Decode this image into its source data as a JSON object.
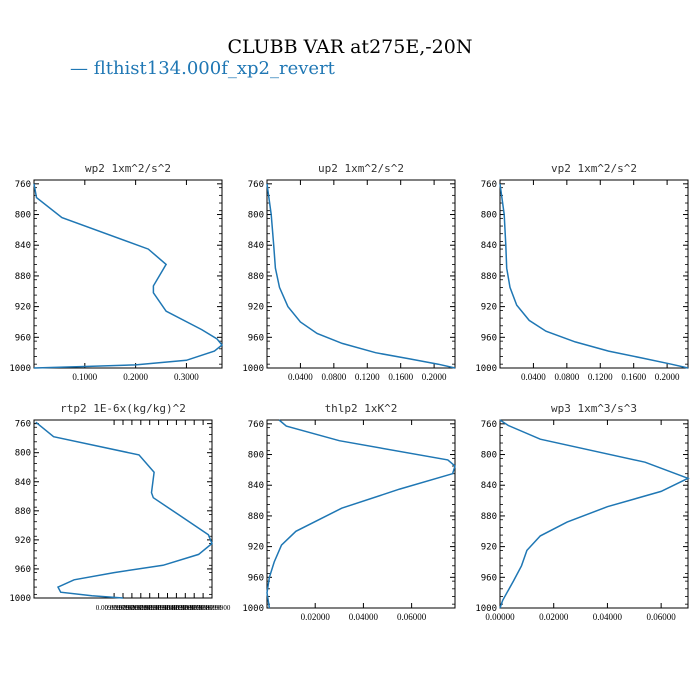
{
  "title": "CLUBB VAR at275E,-20N",
  "legend": [
    {
      "label": "— flthist134.000f_xp2_revert",
      "color": "#1f77b4"
    }
  ],
  "colors": {
    "line": "#1f77b4",
    "axis": "#000000"
  },
  "chart_data": [
    {
      "type": "line",
      "title": "wp2  1xm^2/s^2",
      "xlim": [
        0.0,
        0.37
      ],
      "ylim": [
        1000,
        755
      ],
      "xticks": [
        0.1,
        0.2,
        0.3
      ],
      "xtick_labels": [
        "0.1000",
        "0.2000",
        "0.3000"
      ],
      "yticks": [
        760,
        800,
        840,
        880,
        920,
        960,
        1000
      ],
      "series": [
        {
          "x": [
            0.0,
            0.005,
            0.055,
            0.225,
            0.26,
            0.235,
            0.235,
            0.26,
            0.33,
            0.36,
            0.37,
            0.355,
            0.3,
            0.2,
            0.1,
            0.0
          ],
          "y": [
            760,
            778,
            804,
            845,
            865,
            893,
            902,
            926,
            950,
            962,
            970,
            978,
            990,
            996,
            998,
            1000
          ]
        }
      ]
    },
    {
      "type": "line",
      "title": "up2  1xm^2/s^2",
      "xlim": [
        0.0,
        0.225
      ],
      "ylim": [
        1000,
        755
      ],
      "xticks": [
        0.04,
        0.08,
        0.12,
        0.16,
        0.2
      ],
      "xtick_labels": [
        "0.0400",
        "0.0800",
        "0.1200",
        "0.1600",
        "0.2000"
      ],
      "yticks": [
        760,
        800,
        840,
        880,
        920,
        960,
        1000
      ],
      "series": [
        {
          "x": [
            0.0,
            0.005,
            0.008,
            0.01,
            0.015,
            0.025,
            0.04,
            0.06,
            0.09,
            0.13,
            0.17,
            0.205,
            0.225
          ],
          "y": [
            760,
            800,
            840,
            870,
            895,
            920,
            940,
            955,
            968,
            980,
            988,
            995,
            1000
          ]
        }
      ]
    },
    {
      "type": "line",
      "title": "vp2  1xm^2/s^2",
      "xlim": [
        0.0,
        0.225
      ],
      "ylim": [
        1000,
        755
      ],
      "xticks": [
        0.04,
        0.08,
        0.12,
        0.16,
        0.2
      ],
      "xtick_labels": [
        "0.0400",
        "0.0800",
        "0.1200",
        "0.1600",
        "0.2000"
      ],
      "yticks": [
        760,
        800,
        840,
        880,
        920,
        960,
        1000
      ],
      "series": [
        {
          "x": [
            0.0,
            0.005,
            0.007,
            0.008,
            0.012,
            0.02,
            0.035,
            0.055,
            0.09,
            0.13,
            0.17,
            0.205,
            0.225
          ],
          "y": [
            760,
            800,
            840,
            870,
            895,
            918,
            938,
            952,
            966,
            978,
            987,
            995,
            1000
          ]
        }
      ]
    },
    {
      "type": "line",
      "title": "rtp2  1E-6x(kg/kg)^2",
      "xlim": [
        0.0099997,
        0.0099999
      ],
      "ylim": [
        1000,
        755
      ],
      "xticks": [
        0.00999979,
        0.0099998,
        0.00999981,
        0.00999982,
        0.00999983,
        0.00999984,
        0.00999985,
        0.00999986,
        0.00999987,
        0.00999988,
        0.00999989,
        0.0099999
      ],
      "xtick_labels": [
        "0.009999790",
        "0.009999800",
        "0.009999810",
        "0.009999820",
        "0.009999830",
        "0.009999840",
        "0.009999850",
        "0.009999860",
        "0.009999870",
        "0.009999880",
        "0.009999890",
        "0.009999900"
      ],
      "yticks": [
        760,
        800,
        840,
        880,
        920,
        960,
        1000
      ],
      "series": [
        {
          "x": [
            0.009999702,
            0.009999722,
            0.009999818,
            0.009999835,
            0.009999832,
            0.009999834,
            0.009999862,
            0.009999896,
            0.0099999,
            0.009999885,
            0.009999845,
            0.00999979,
            0.009999745,
            0.009999727,
            0.00999973,
            0.009999765,
            0.0099998
          ],
          "y": [
            758,
            778,
            803,
            827,
            855,
            862,
            885,
            913,
            925,
            940,
            955,
            965,
            975,
            985,
            992,
            997,
            1000
          ]
        }
      ]
    },
    {
      "type": "line",
      "title": "thlp2  1xK^2",
      "xlim": [
        0.0,
        0.078
      ],
      "ylim": [
        1000,
        755
      ],
      "xticks": [
        0.02,
        0.04,
        0.06
      ],
      "xtick_labels": [
        "0.02000",
        "0.04000",
        "0.06000"
      ],
      "yticks": [
        760,
        800,
        840,
        880,
        920,
        960,
        1000
      ],
      "series": [
        {
          "x": [
            0.005,
            0.008,
            0.03,
            0.075,
            0.078,
            0.077,
            0.055,
            0.031,
            0.012,
            0.006,
            0.003,
            0.001,
            0.0,
            0.001
          ],
          "y": [
            755,
            763,
            782,
            807,
            815,
            825,
            845,
            870,
            900,
            918,
            940,
            960,
            980,
            1000
          ]
        }
      ]
    },
    {
      "type": "line",
      "title": "wp3  1xm^3/s^3",
      "xlim": [
        0.0,
        0.07
      ],
      "ylim": [
        1000,
        755
      ],
      "xticks": [
        0.0,
        0.02,
        0.04,
        0.06
      ],
      "xtick_labels": [
        "0.00000",
        "0.02000",
        "0.04000",
        "0.06000"
      ],
      "yticks": [
        760,
        800,
        840,
        880,
        920,
        960,
        1000
      ],
      "series": [
        {
          "x": [
            0.0,
            0.003,
            0.015,
            0.054,
            0.07,
            0.06,
            0.04,
            0.025,
            0.015,
            0.01,
            0.008,
            0.005,
            0.001,
            0.0
          ],
          "y": [
            755,
            762,
            780,
            810,
            831,
            848,
            868,
            888,
            906,
            925,
            945,
            965,
            990,
            1000
          ]
        }
      ]
    }
  ]
}
